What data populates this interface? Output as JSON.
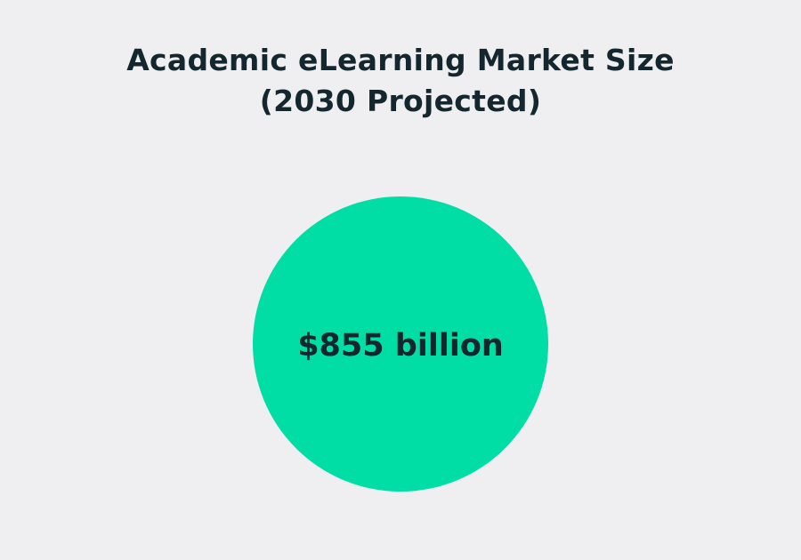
{
  "chart_data": {
    "type": "bubble",
    "title_lines": [
      "Academic eLearning Market Size",
      "(2030 Projected)"
    ],
    "values": [
      855
    ],
    "unit": "billion USD",
    "data_labels": [
      "$855 billion"
    ],
    "colors": {
      "bubble": "#00dea6",
      "text": "#14272e",
      "background": "#efeff1"
    }
  }
}
